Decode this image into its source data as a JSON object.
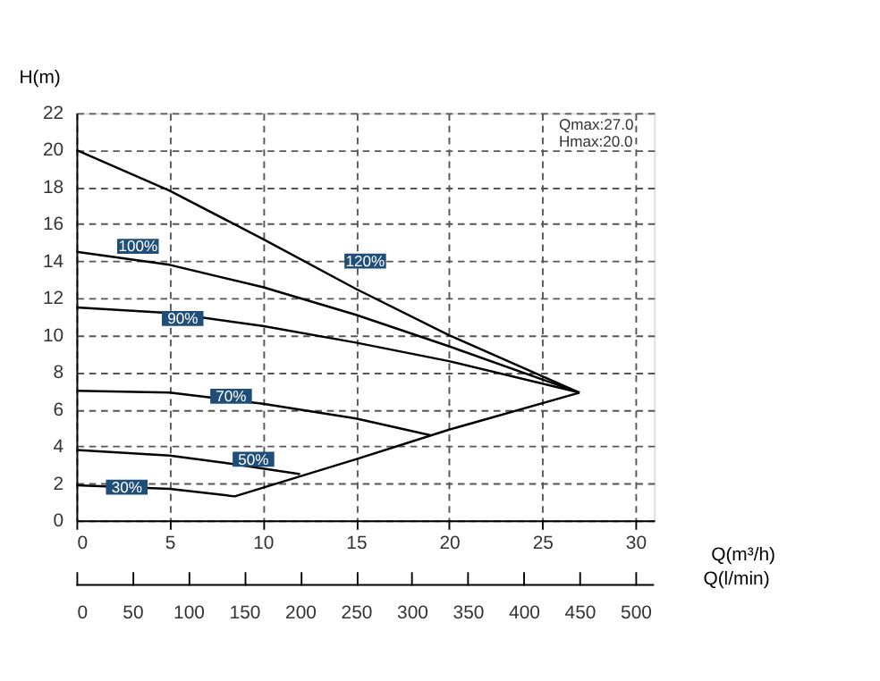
{
  "chart_data": {
    "type": "line",
    "xlabel": "Q(m³/h)",
    "ylabel": "H(m)",
    "x2label": "Q(l/min)",
    "xlim": [
      0,
      31
    ],
    "xticks": [
      0,
      5,
      10,
      15,
      20,
      25,
      30
    ],
    "ylim": [
      0,
      22
    ],
    "yticks": [
      0,
      2,
      4,
      6,
      8,
      10,
      12,
      14,
      16,
      18,
      20,
      22
    ],
    "x2lim": [
      0,
      516.7
    ],
    "x2ticks": [
      0,
      50,
      100,
      150,
      200,
      250,
      300,
      350,
      400,
      450,
      500
    ],
    "grid": true,
    "legend": false,
    "line_style": "solid",
    "marker": "none",
    "series": [
      {
        "color": "#000000",
        "x": [
          0,
          5,
          10,
          15,
          20,
          27
        ],
        "values": [
          20,
          17.8,
          15.2,
          12.5,
          10,
          6.9
        ]
      },
      {
        "color": "#000000",
        "x": [
          0,
          5,
          10,
          15,
          20,
          27
        ],
        "values": [
          14.5,
          13.8,
          12.6,
          11.1,
          9.4,
          6.9
        ]
      },
      {
        "color": "#000000",
        "x": [
          0,
          5,
          10,
          15,
          20,
          27
        ],
        "values": [
          11.5,
          11.2,
          10.5,
          9.6,
          8.6,
          6.9
        ]
      },
      {
        "color": "#000000",
        "x": [
          0,
          5,
          10,
          15,
          19
        ],
        "values": [
          7,
          6.9,
          6.3,
          5.5,
          4.6
        ]
      },
      {
        "color": "#000000",
        "x": [
          0,
          5,
          8,
          12
        ],
        "values": [
          3.8,
          3.5,
          3.1,
          2.5
        ]
      },
      {
        "color": "#000000",
        "x": [
          0,
          5,
          8.5,
          15,
          20,
          27
        ],
        "values": [
          1.9,
          1.7,
          1.3,
          3.3,
          4.9,
          6.9
        ]
      }
    ],
    "annotations": [
      {
        "text": "120%",
        "x": 15.5,
        "y": 14
      },
      {
        "text": "100%",
        "x": 3.3,
        "y": 14.8
      },
      {
        "text": "90%",
        "x": 5.7,
        "y": 10.9
      },
      {
        "text": "70%",
        "x": 8.3,
        "y": 6.7
      },
      {
        "text": "50%",
        "x": 9.5,
        "y": 3.3
      },
      {
        "text": "30%",
        "x": 2.7,
        "y": 1.8
      },
      "Qmax:27.0",
      "Hmax:20.0"
    ]
  }
}
